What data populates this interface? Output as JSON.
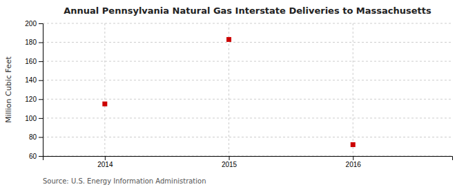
{
  "chart_data": {
    "type": "scatter",
    "title": "Annual Pennsylvania Natural Gas Interstate Deliveries to Massachusetts",
    "ylabel": "Million Cubic Feet",
    "source": "Source: U.S. Energy Information Administration",
    "x": [
      2014,
      2015,
      2016
    ],
    "values": [
      115,
      183,
      72
    ],
    "xlim": [
      2013.5,
      2016.8
    ],
    "xticks": [
      2014,
      2015,
      2016
    ],
    "ylim": [
      60,
      200
    ],
    "yticks": [
      60,
      80,
      100,
      120,
      140,
      160,
      180,
      200
    ],
    "color": "#cc0000",
    "marker": "square",
    "grid": true
  }
}
